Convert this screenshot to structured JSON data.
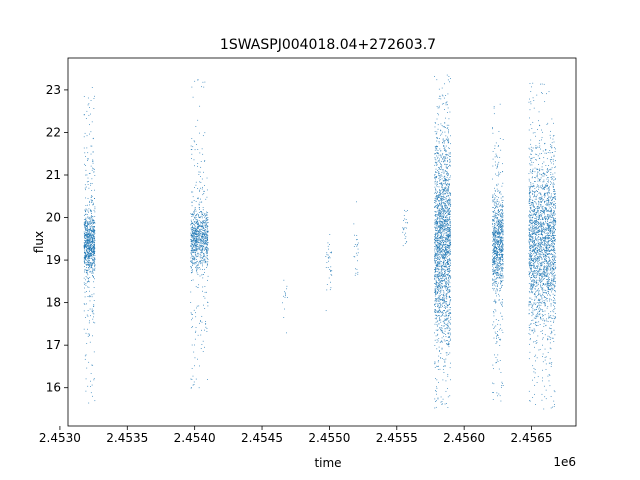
{
  "chart_data": {
    "type": "scatter",
    "title": "1SWASPJ004018.04+272603.7",
    "xlabel": "time",
    "ylabel": "flux",
    "x_offset_label": "1e6",
    "x_scale": 1000000,
    "xlim": [
      2.45306,
      2.45683
    ],
    "ylim": [
      15.1,
      23.75
    ],
    "x_ticks": [
      2.453,
      2.4535,
      2.454,
      2.4545,
      2.455,
      2.4555,
      2.456,
      2.4565
    ],
    "x_tick_labels": [
      "2.4530",
      "2.4535",
      "2.4540",
      "2.4545",
      "2.4550",
      "2.4555",
      "2.4560",
      "2.4565"
    ],
    "y_ticks": [
      16,
      17,
      18,
      19,
      20,
      21,
      22,
      23
    ],
    "y_tick_labels": [
      "16",
      "17",
      "18",
      "19",
      "20",
      "21",
      "22",
      "23"
    ],
    "grid": false,
    "marker_color": "#1f77b4",
    "clusters": [
      {
        "x_start": 2.45318,
        "x_end": 2.45326,
        "center": 19.4,
        "core_lo": 18.8,
        "core_hi": 20.0,
        "min": 15.6,
        "max": 23.1,
        "count": 900
      },
      {
        "x_start": 2.45397,
        "x_end": 2.4541,
        "center": 19.5,
        "core_lo": 19.0,
        "core_hi": 20.1,
        "min": 15.8,
        "max": 23.3,
        "count": 900
      },
      {
        "x_start": 2.45465,
        "x_end": 2.45469,
        "center": 18.2,
        "core_lo": 18.0,
        "core_hi": 18.5,
        "min": 17.2,
        "max": 18.6,
        "count": 14
      },
      {
        "x_start": 2.45497,
        "x_end": 2.45502,
        "center": 19.0,
        "core_lo": 18.6,
        "core_hi": 19.5,
        "min": 17.4,
        "max": 19.6,
        "count": 35
      },
      {
        "x_start": 2.45518,
        "x_end": 2.45522,
        "center": 19.2,
        "core_lo": 18.5,
        "core_hi": 20.0,
        "min": 18.3,
        "max": 20.4,
        "count": 25
      },
      {
        "x_start": 2.45554,
        "x_end": 2.45558,
        "center": 19.7,
        "core_lo": 19.2,
        "core_hi": 20.2,
        "min": 18.8,
        "max": 20.5,
        "count": 25
      },
      {
        "x_start": 2.45578,
        "x_end": 2.4559,
        "center": 19.4,
        "core_lo": 17.5,
        "core_hi": 21.0,
        "min": 15.5,
        "max": 23.4,
        "count": 2000
      },
      {
        "x_start": 2.45621,
        "x_end": 2.45629,
        "center": 19.4,
        "core_lo": 18.5,
        "core_hi": 20.2,
        "min": 15.6,
        "max": 22.8,
        "count": 900
      },
      {
        "x_start": 2.45648,
        "x_end": 2.45668,
        "center": 19.4,
        "core_lo": 17.8,
        "core_hi": 20.6,
        "min": 15.5,
        "max": 23.2,
        "count": 2200
      }
    ]
  }
}
